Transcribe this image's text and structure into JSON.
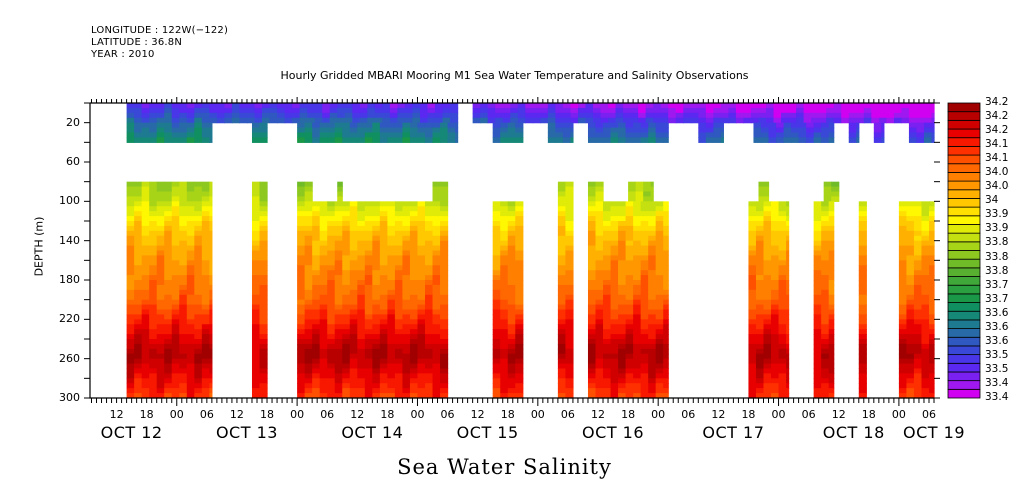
{
  "header": {
    "longitude": "LONGITUDE : 122W(−122)",
    "latitude": "LATITUDE : 36.8N",
    "year": "YEAR : 2010"
  },
  "chart_data": {
    "type": "heatmap",
    "title": "Hourly Gridded MBARI Mooring M1 Sea Water Temperature and Salinity Observations",
    "xlabel": "Sea Water Salinity",
    "ylabel": "DEPTH (m)",
    "x_units": "hours since OCT 12 2010 00:00",
    "xlim": [
      6.7,
      175
    ],
    "ylim": [
      300,
      0
    ],
    "y_ticks": [
      20,
      60,
      100,
      140,
      180,
      220,
      260,
      300
    ],
    "x_hour_ticks": [
      {
        "h": 12,
        "label": "12"
      },
      {
        "h": 18,
        "label": "18"
      },
      {
        "h": 24,
        "label": "00"
      },
      {
        "h": 30,
        "label": "06"
      },
      {
        "h": 36,
        "label": "12"
      },
      {
        "h": 42,
        "label": "18"
      },
      {
        "h": 48,
        "label": "00"
      },
      {
        "h": 54,
        "label": "06"
      },
      {
        "h": 60,
        "label": "12"
      },
      {
        "h": 66,
        "label": "18"
      },
      {
        "h": 72,
        "label": "00"
      },
      {
        "h": 78,
        "label": "06"
      },
      {
        "h": 84,
        "label": "12"
      },
      {
        "h": 90,
        "label": "18"
      },
      {
        "h": 96,
        "label": "00"
      },
      {
        "h": 102,
        "label": "06"
      },
      {
        "h": 108,
        "label": "12"
      },
      {
        "h": 114,
        "label": "18"
      },
      {
        "h": 120,
        "label": "00"
      },
      {
        "h": 126,
        "label": "06"
      },
      {
        "h": 132,
        "label": "12"
      },
      {
        "h": 138,
        "label": "18"
      },
      {
        "h": 144,
        "label": "00"
      },
      {
        "h": 150,
        "label": "06"
      },
      {
        "h": 156,
        "label": "12"
      },
      {
        "h": 162,
        "label": "18"
      },
      {
        "h": 168,
        "label": "00"
      },
      {
        "h": 174,
        "label": "06"
      }
    ],
    "x_day_labels": [
      {
        "h": 15,
        "label": "OCT 12"
      },
      {
        "h": 38,
        "label": "OCT 13"
      },
      {
        "h": 63,
        "label": "OCT 14"
      },
      {
        "h": 86,
        "label": "OCT 15"
      },
      {
        "h": 111,
        "label": "OCT 16"
      },
      {
        "h": 135,
        "label": "OCT 17"
      },
      {
        "h": 159,
        "label": "OCT 18"
      },
      {
        "h": 175,
        "label": "OCT 19"
      }
    ],
    "colorbar": {
      "min": 33.44,
      "max": 34.28,
      "step": 0.04,
      "labels": [
        "34.28",
        "34.24",
        "34.2",
        "34.16",
        "34.12",
        "34.08",
        "34.04",
        "34",
        "33.96",
        "33.92",
        "33.88",
        "33.84",
        "33.8",
        "33.76",
        "33.72",
        "33.68",
        "33.64",
        "33.6",
        "33.56",
        "33.52",
        "33.48",
        "33.44"
      ]
    },
    "colormap": [
      "#d000f0",
      "#a018f0",
      "#7a20f0",
      "#5a28f0",
      "#4836e8",
      "#3a48d8",
      "#2f58c0",
      "#286aa8",
      "#1e7a90",
      "#168878",
      "#109060",
      "#1a9848",
      "#2aa040",
      "#40a838",
      "#58b030",
      "#70bc28",
      "#8cc820",
      "#a8d418",
      "#c4e010",
      "#e0ec08",
      "#fff800",
      "#ffe000",
      "#ffc800",
      "#ffb000",
      "#ff9800",
      "#ff8000",
      "#ff6800",
      "#ff5000",
      "#ff3000",
      "#f81800",
      "#e80000",
      "#d00000",
      "#b80000",
      "#a00000"
    ],
    "profile": [
      {
        "depth": 0,
        "value": 33.52
      },
      {
        "depth": 10,
        "value": 33.56
      },
      {
        "depth": 20,
        "value": 33.62
      },
      {
        "depth": 40,
        "value": 33.7
      },
      {
        "depth": 80,
        "value": 33.86
      },
      {
        "depth": 100,
        "value": 33.9
      },
      {
        "depth": 130,
        "value": 34.0
      },
      {
        "depth": 160,
        "value": 34.05
      },
      {
        "depth": 200,
        "value": 34.1
      },
      {
        "depth": 230,
        "value": 34.18
      },
      {
        "depth": 255,
        "value": 34.25
      },
      {
        "depth": 275,
        "value": 34.2
      },
      {
        "depth": 300,
        "value": 34.14
      }
    ],
    "data_segments": [
      {
        "from_depth": 0,
        "to_depth": 20,
        "ranges": [
          [
            14,
            80
          ],
          [
            83,
            175
          ]
        ]
      },
      {
        "from_depth": 20,
        "to_depth": 40,
        "ranges": [
          [
            14,
            31
          ],
          [
            39,
            42
          ],
          [
            48,
            80
          ],
          [
            87,
            93
          ],
          [
            98,
            103
          ],
          [
            106,
            122
          ],
          [
            128,
            133
          ],
          [
            139,
            155
          ],
          [
            158,
            160
          ],
          [
            163,
            165
          ],
          [
            170,
            175
          ]
        ]
      },
      {
        "from_depth": 80,
        "to_depth": 100,
        "ranges": [
          [
            14,
            31
          ],
          [
            39,
            42
          ],
          [
            48,
            51
          ],
          [
            56,
            57
          ],
          [
            75,
            78
          ],
          [
            100,
            103
          ],
          [
            106,
            109
          ],
          [
            114,
            119
          ],
          [
            140,
            142
          ],
          [
            153,
            156
          ]
        ]
      },
      {
        "from_depth": 100,
        "to_depth": 300,
        "ranges": [
          [
            14,
            31
          ],
          [
            39,
            42
          ],
          [
            48,
            78
          ],
          [
            87,
            93
          ],
          [
            100,
            103
          ],
          [
            106,
            122
          ],
          [
            138,
            146
          ],
          [
            151,
            155
          ],
          [
            160,
            161.5
          ],
          [
            168,
            175
          ]
        ]
      }
    ]
  }
}
